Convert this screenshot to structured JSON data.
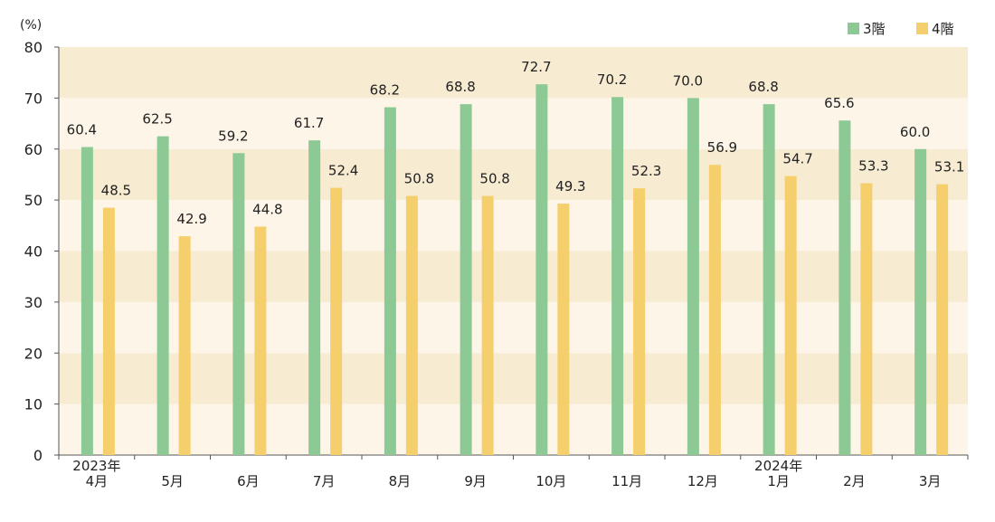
{
  "chart_data": {
    "type": "bar",
    "unit_label": "(%)",
    "categories": [
      [
        "2023年",
        "4月"
      ],
      [
        "5月"
      ],
      [
        "6月"
      ],
      [
        "7月"
      ],
      [
        "8月"
      ],
      [
        "9月"
      ],
      [
        "10月"
      ],
      [
        "11月"
      ],
      [
        "12月"
      ],
      [
        "2024年",
        "1月"
      ],
      [
        "2月"
      ],
      [
        "3月"
      ]
    ],
    "series": [
      {
        "name": "3階",
        "color": "#8dc994",
        "values": [
          60.4,
          62.5,
          59.2,
          61.7,
          68.2,
          68.8,
          72.7,
          70.2,
          70.0,
          68.8,
          65.6,
          60.0
        ],
        "labels": [
          "60.4",
          "62.5",
          "59.2",
          "61.7",
          "68.2",
          "68.8",
          "72.7",
          "70.2",
          "70.0",
          "68.8",
          "65.6",
          "60.0"
        ]
      },
      {
        "name": "4階",
        "color": "#f5cf6b",
        "values": [
          48.5,
          42.9,
          44.8,
          52.4,
          50.8,
          50.8,
          49.3,
          52.3,
          56.9,
          54.7,
          53.3,
          53.1
        ],
        "labels": [
          "48.5",
          "42.9",
          "44.8",
          "52.4",
          "50.8",
          "50.8",
          "49.3",
          "52.3",
          "56.9",
          "54.7",
          "53.3",
          "53.1"
        ]
      }
    ],
    "ylim": [
      0,
      80
    ],
    "yticks": [
      0,
      10,
      20,
      30,
      40,
      50,
      60,
      70,
      80
    ],
    "legend": "top-right",
    "band_colors": [
      "#fdf6e8",
      "#f7ebd2"
    ]
  }
}
